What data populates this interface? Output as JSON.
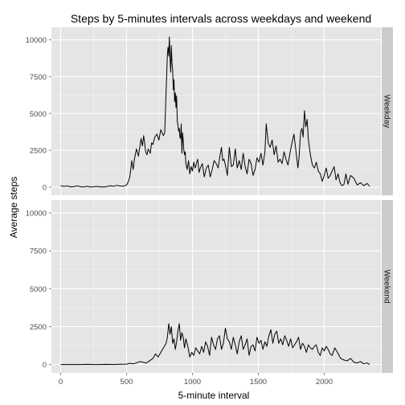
{
  "chart_data": {
    "type": "line",
    "title": "Steps by 5-minutes intervals across weekdays and weekend",
    "xlabel": "5-minute interval",
    "ylabel": "Average steps",
    "xlim": [
      -70,
      2430
    ],
    "ylim": [
      -550,
      10850
    ],
    "x_ticks": [
      0,
      500,
      1000,
      1500,
      2000
    ],
    "y_ticks": [
      0,
      2500,
      5000,
      7500,
      10000
    ],
    "grid": true,
    "colors": {
      "panel_background": "#e5e5e5",
      "grid_major": "#ffffff",
      "grid_minor": "#f2f2f2",
      "strip_background": "#cccccc",
      "line": "#000000"
    },
    "panels": [
      {
        "strip": "Weekday",
        "series": [
          {
            "x": [
              0,
              25,
              50,
              75,
              100,
              125,
              150,
              175,
              200,
              225,
              250,
              275,
              300,
              325,
              350,
              375,
              400,
              425,
              450,
              475,
              500,
              510,
              525,
              540,
              550,
              560,
              575,
              590,
              600,
              610,
              620,
              630,
              645,
              655,
              665,
              680,
              690,
              700,
              715,
              730,
              745,
              760,
              780,
              790,
              800,
              805,
              810,
              815,
              820,
              825,
              830,
              835,
              840,
              845,
              850,
              855,
              860,
              865,
              870,
              875,
              880,
              885,
              890,
              895,
              900,
              905,
              910,
              915,
              920,
              925,
              930,
              935,
              940,
              945,
              950,
              960,
              970,
              980,
              990,
              1000,
              1010,
              1020,
              1030,
              1040,
              1050,
              1060,
              1075,
              1090,
              1105,
              1120,
              1135,
              1150,
              1165,
              1180,
              1195,
              1210,
              1220,
              1230,
              1240,
              1250,
              1265,
              1280,
              1295,
              1310,
              1325,
              1340,
              1355,
              1370,
              1385,
              1400,
              1415,
              1430,
              1445,
              1460,
              1475,
              1490,
              1505,
              1520,
              1535,
              1550,
              1560,
              1575,
              1590,
              1605,
              1620,
              1635,
              1650,
              1665,
              1680,
              1695,
              1710,
              1725,
              1740,
              1755,
              1770,
              1785,
              1800,
              1810,
              1820,
              1830,
              1840,
              1850,
              1860,
              1870,
              1880,
              1895,
              1910,
              1925,
              1940,
              1955,
              1970,
              1985,
              2000,
              2015,
              2030,
              2045,
              2060,
              2075,
              2090,
              2105,
              2120,
              2135,
              2150,
              2165,
              2180,
              2200,
              2225,
              2250,
              2275,
              2300,
              2325,
              2345
            ],
            "y": [
              100,
              50,
              80,
              20,
              40,
              90,
              30,
              20,
              60,
              10,
              30,
              50,
              20,
              10,
              40,
              100,
              60,
              120,
              80,
              60,
              150,
              300,
              700,
              1800,
              1200,
              1900,
              2600,
              2100,
              2700,
              3300,
              2800,
              3500,
              2400,
              2200,
              2600,
              2300,
              3000,
              2900,
              3400,
              3600,
              3200,
              3900,
              3500,
              3700,
              6500,
              7700,
              9000,
              9500,
              8900,
              10200,
              8800,
              7800,
              9600,
              8400,
              7900,
              6600,
              7300,
              5800,
              6400,
              5400,
              6200,
              4500,
              4200,
              3800,
              4000,
              3400,
              3300,
              4300,
              2300,
              3700,
              3200,
              2500,
              2200,
              2400,
              1600,
              1200,
              1800,
              900,
              1400,
              1100,
              1700,
              1300,
              1600,
              1900,
              1000,
              1300,
              1600,
              700,
              1300,
              1500,
              700,
              1200,
              1800,
              1600,
              1300,
              2200,
              2700,
              1800,
              1900,
              1500,
              800,
              2700,
              1400,
              1500,
              2600,
              1300,
              1800,
              1200,
              2300,
              1400,
              900,
              1900,
              1600,
              800,
              1200,
              2000,
              1700,
              2300,
              1500,
              2400,
              4300,
              3000,
              2700,
              3200,
              2200,
              2800,
              1700,
              1900,
              1600,
              2400,
              1900,
              1500,
              2300,
              3000,
              3600,
              2500,
              1300,
              2100,
              3700,
              4000,
              3400,
              5200,
              4100,
              4600,
              3200,
              2200,
              1500,
              1300,
              1700,
              1100,
              900,
              400,
              800,
              1300,
              600,
              800,
              1100,
              1400,
              500,
              900,
              300,
              100,
              200,
              900,
              200,
              800,
              600,
              150,
              300,
              100,
              250,
              60
            ]
          }
        ]
      },
      {
        "strip": "Weekend",
        "series": [
          {
            "x": [
              0,
              50,
              100,
              150,
              200,
              250,
              300,
              350,
              400,
              450,
              500,
              525,
              550,
              575,
              600,
              625,
              650,
              675,
              700,
              720,
              740,
              760,
              780,
              800,
              810,
              820,
              830,
              840,
              850,
              860,
              870,
              880,
              890,
              900,
              910,
              920,
              930,
              940,
              950,
              965,
              980,
              995,
              1010,
              1025,
              1040,
              1055,
              1070,
              1085,
              1100,
              1115,
              1130,
              1145,
              1160,
              1175,
              1190,
              1205,
              1220,
              1235,
              1250,
              1265,
              1280,
              1295,
              1310,
              1325,
              1340,
              1355,
              1370,
              1385,
              1400,
              1415,
              1430,
              1445,
              1460,
              1475,
              1490,
              1505,
              1520,
              1535,
              1550,
              1565,
              1580,
              1595,
              1610,
              1625,
              1640,
              1655,
              1670,
              1685,
              1700,
              1715,
              1730,
              1745,
              1760,
              1775,
              1790,
              1805,
              1820,
              1835,
              1850,
              1865,
              1880,
              1895,
              1910,
              1925,
              1940,
              1955,
              1970,
              1985,
              2000,
              2015,
              2030,
              2045,
              2060,
              2080,
              2100,
              2125,
              2150,
              2175,
              2200,
              2225,
              2250,
              2275,
              2300,
              2325,
              2345
            ],
            "y": [
              0,
              0,
              0,
              0,
              10,
              0,
              0,
              10,
              0,
              20,
              30,
              80,
              50,
              100,
              200,
              150,
              100,
              250,
              400,
              700,
              500,
              800,
              1100,
              1400,
              1800,
              2700,
              2000,
              2500,
              1400,
              1700,
              1000,
              1500,
              2200,
              2700,
              1600,
              2100,
              1800,
              1100,
              1700,
              1200,
              500,
              800,
              600,
              1100,
              900,
              700,
              1200,
              800,
              1500,
              1200,
              600,
              1800,
              1300,
              1000,
              1700,
              1900,
              1000,
              1400,
              2400,
              1700,
              1500,
              1000,
              1800,
              1300,
              700,
              1500,
              1900,
              1000,
              1300,
              1700,
              600,
              1200,
              1300,
              900,
              1800,
              1400,
              1600,
              1000,
              1500,
              1200,
              1900,
              2300,
              1400,
              2000,
              2200,
              1400,
              1700,
              1300,
              1900,
              1600,
              1200,
              1700,
              1100,
              1300,
              1500,
              1800,
              1000,
              1400,
              1200,
              800,
              1300,
              1100,
              1000,
              1200,
              1300,
              800,
              600,
              1100,
              900,
              1200,
              1000,
              700,
              600,
              1100,
              800,
              400,
              300,
              250,
              400,
              150,
              100,
              200,
              50,
              100,
              0
            ]
          }
        ]
      }
    ]
  }
}
